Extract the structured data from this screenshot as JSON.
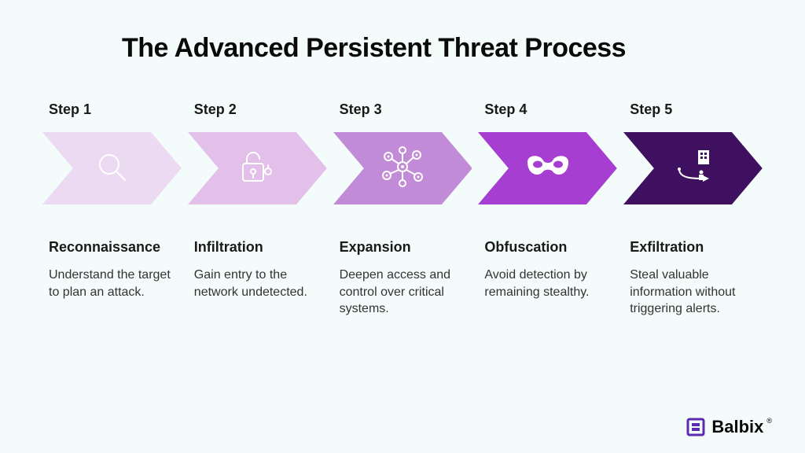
{
  "title": "The Advanced Persistent Threat Process",
  "background_color": "#f4fbfb",
  "title_color": "#0a0a0a",
  "title_fontsize": 34,
  "chevron": {
    "height": 92,
    "notch": 22
  },
  "steps": [
    {
      "label": "Step 1",
      "name": "Reconnaissance",
      "desc": "Understand the target to plan an attack.",
      "color": "#ecd9f2",
      "icon": "magnifier"
    },
    {
      "label": "Step 2",
      "name": "Infiltration",
      "desc": "Gain entry to the network undetected.",
      "color": "#e2c0ea",
      "icon": "unlocked-padlock"
    },
    {
      "label": "Step 3",
      "name": "Expansion",
      "desc": "Deepen access and control over critical systems.",
      "color": "#c28bd8",
      "icon": "network-nodes"
    },
    {
      "label": "Step 4",
      "name": "Obfuscation",
      "desc": "Avoid detection by remaining stealthy.",
      "color": "#a63ed1",
      "icon": "mask"
    },
    {
      "label": "Step 5",
      "name": "Exfiltration",
      "desc": "Steal valuable information without triggering alerts.",
      "color": "#3f1060",
      "icon": "exfil"
    }
  ],
  "brand": {
    "name": "Balbix",
    "logo_color": "#5b2bb0"
  }
}
